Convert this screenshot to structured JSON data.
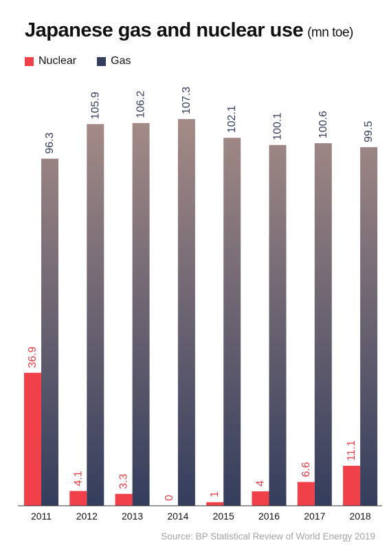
{
  "title": "Japanese gas and nuclear use",
  "unit_note": "(mn toe)",
  "source": "Source: BP Statistical Review of World Energy 2019",
  "chart_data": {
    "type": "bar",
    "categories": [
      "2011",
      "2012",
      "2013",
      "2014",
      "2015",
      "2016",
      "2017",
      "2018"
    ],
    "series": [
      {
        "name": "Nuclear",
        "values": [
          36.9,
          4.1,
          3.3,
          0,
          1,
          4,
          6.6,
          11.1
        ],
        "labels": [
          "36.9",
          "4.1",
          "3.3",
          "0",
          "1",
          "4",
          "6.6",
          "11.1"
        ],
        "color": "#f0414a"
      },
      {
        "name": "Gas",
        "values": [
          96.3,
          105.9,
          106.2,
          107.3,
          102.1,
          100.1,
          100.6,
          99.5
        ],
        "labels": [
          "96.3",
          "105.9",
          "106.2",
          "107.3",
          "102.1",
          "100.1",
          "100.6",
          "99.5"
        ],
        "color": "#343d5c",
        "gradient_top": "#a48b87"
      }
    ],
    "ylim": [
      0,
      107.3
    ],
    "grid": false,
    "legend": "top-left"
  }
}
